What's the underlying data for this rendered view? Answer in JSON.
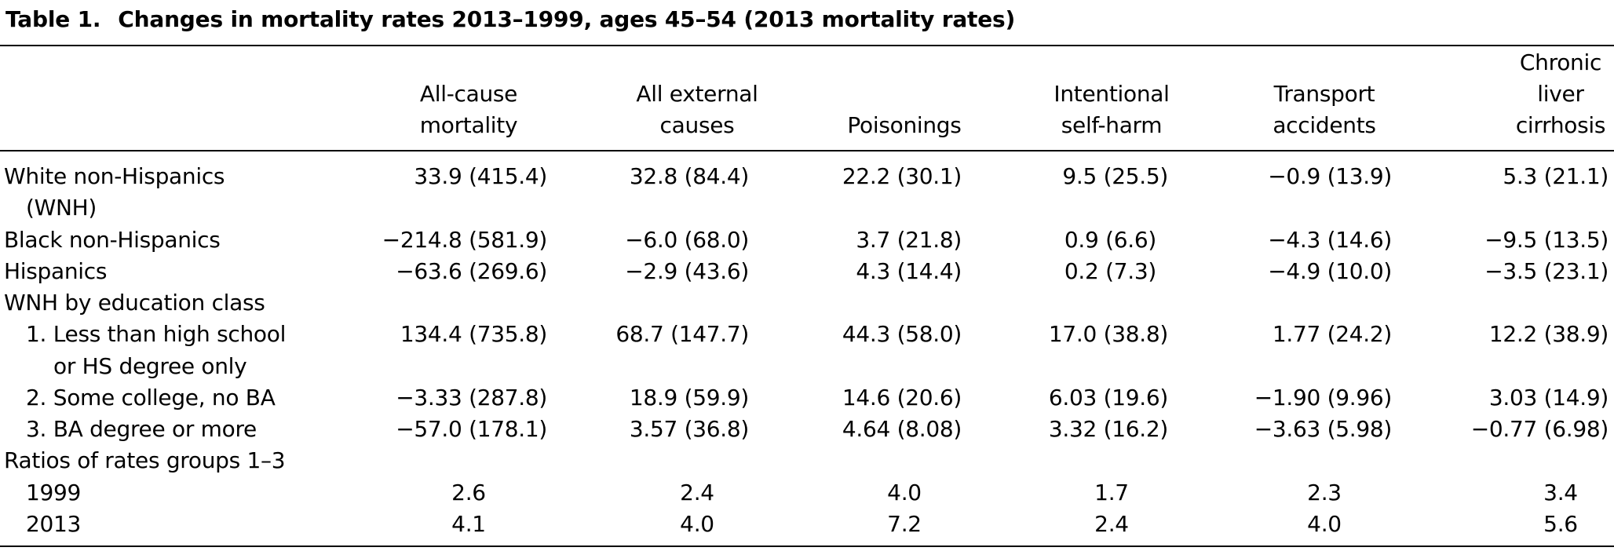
{
  "table": {
    "number": "Table 1.",
    "title": "Changes in mortality rates 2013–1999, ages 45–54 (2013 mortality rates)",
    "columns": [
      [
        "All-cause",
        "mortality"
      ],
      [
        "All external",
        "causes"
      ],
      [
        "Poisonings"
      ],
      [
        "Intentional",
        "self-harm"
      ],
      [
        "Transport",
        "accidents"
      ],
      [
        "Chronic",
        "liver",
        "cirrhosis"
      ]
    ],
    "rows": [
      {
        "label": "White non-Hispanics",
        "values": [
          "33.9 (415.4)",
          "32.8 (84.4)",
          "22.2 (30.1)",
          "9.5 (25.5)",
          "−0.9 (13.9)",
          "5.3 (21.1)"
        ]
      },
      {
        "label": "(WNH)"
      },
      {
        "label": "Black non-Hispanics",
        "values": [
          "−214.8 (581.9)",
          "−6.0 (68.0)",
          "3.7 (21.8)",
          "0.9 (6.6)",
          "−4.3 (14.6)",
          "−9.5 (13.5)"
        ]
      },
      {
        "label": "Hispanics",
        "values": [
          "−63.6 (269.6)",
          "−2.9 (43.6)",
          "4.3 (14.4)",
          "0.2 (7.3)",
          "−4.9 (10.0)",
          "−3.5 (23.1)"
        ]
      },
      {
        "label": "WNH by education class"
      },
      {
        "label": "1. Less than high school",
        "values": [
          "134.4 (735.8)",
          "68.7 (147.7)",
          "44.3 (58.0)",
          "17.0 (38.8)",
          "1.77 (24.2)",
          "12.2 (38.9)"
        ]
      },
      {
        "label": "or HS degree only"
      },
      {
        "label": "2. Some college, no BA",
        "values": [
          "−3.33 (287.8)",
          "18.9 (59.9)",
          "14.6 (20.6)",
          "6.03 (19.6)",
          "−1.90 (9.96)",
          "3.03 (14.9)"
        ]
      },
      {
        "label": "3. BA degree or more",
        "values": [
          "−57.0 (178.1)",
          "3.57 (36.8)",
          "4.64 (8.08)",
          "3.32 (16.2)",
          "−3.63 (5.98)",
          "−0.77 (6.98)"
        ]
      },
      {
        "label": "Ratios of rates groups 1–3"
      },
      {
        "label": "1999",
        "values": [
          "2.6",
          "2.4",
          "4.0",
          "1.7",
          "2.3",
          "3.4"
        ]
      },
      {
        "label": "2013",
        "values": [
          "4.1",
          "4.0",
          "7.2",
          "2.4",
          "4.0",
          "5.6"
        ]
      }
    ]
  }
}
